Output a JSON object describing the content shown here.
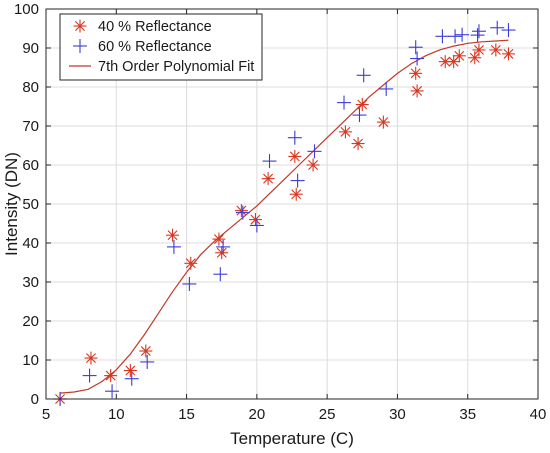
{
  "chart_data": {
    "type": "scatter",
    "title": "",
    "xlabel": "Temperature (C)",
    "ylabel": "Intensity (DN)",
    "xlim": [
      5,
      40
    ],
    "ylim": [
      0,
      100
    ],
    "xticks": [
      5,
      10,
      15,
      20,
      25,
      30,
      35,
      40
    ],
    "yticks": [
      0,
      10,
      20,
      30,
      40,
      50,
      60,
      70,
      80,
      90,
      100
    ],
    "xtick_labels": [
      "5",
      "10",
      "15",
      "20",
      "25",
      "30",
      "35",
      "40"
    ],
    "ytick_labels": [
      "0",
      "10",
      "20",
      "30",
      "40",
      "50",
      "60",
      "70",
      "80",
      "90",
      "100"
    ],
    "grid": true,
    "legend_position": "top-left",
    "colors": {
      "series_40": "#d9351f",
      "series_60": "#3b3bd6",
      "fit": "#c0392b",
      "grid": "#dcdcdc",
      "axes": "#262626"
    },
    "series": [
      {
        "name": "40 % Reflectance",
        "marker": "asterisk",
        "points": [
          [
            6.0,
            0.0
          ],
          [
            8.2,
            10.5
          ],
          [
            9.6,
            6.0
          ],
          [
            11.0,
            7.3
          ],
          [
            12.1,
            12.3
          ],
          [
            14.0,
            42.0
          ],
          [
            15.3,
            34.8
          ],
          [
            17.3,
            41.0
          ],
          [
            17.5,
            37.5
          ],
          [
            18.9,
            48.3
          ],
          [
            19.9,
            46.0
          ],
          [
            20.8,
            56.5
          ],
          [
            22.7,
            62.2
          ],
          [
            22.8,
            52.5
          ],
          [
            24.0,
            60.0
          ],
          [
            26.3,
            68.5
          ],
          [
            27.2,
            65.5
          ],
          [
            27.5,
            75.5
          ],
          [
            29.0,
            71.0
          ],
          [
            31.3,
            83.5
          ],
          [
            31.4,
            79.0
          ],
          [
            33.4,
            86.5
          ],
          [
            34.0,
            86.5
          ],
          [
            34.4,
            88.0
          ],
          [
            35.5,
            87.5
          ],
          [
            35.8,
            89.5
          ],
          [
            37.0,
            89.5
          ],
          [
            37.9,
            88.5
          ]
        ]
      },
      {
        "name": "60 % Reflectance",
        "marker": "plus",
        "points": [
          [
            6.0,
            0.0
          ],
          [
            8.1,
            6.0
          ],
          [
            9.7,
            2.0
          ],
          [
            11.1,
            5.2
          ],
          [
            12.2,
            9.5
          ],
          [
            14.1,
            39.0
          ],
          [
            15.2,
            29.5
          ],
          [
            17.4,
            32.0
          ],
          [
            17.6,
            39.0
          ],
          [
            19.0,
            47.8
          ],
          [
            20.0,
            44.5
          ],
          [
            20.9,
            61.0
          ],
          [
            22.7,
            67.0
          ],
          [
            22.9,
            56.0
          ],
          [
            24.1,
            63.5
          ],
          [
            26.2,
            76.0
          ],
          [
            27.3,
            72.8
          ],
          [
            27.6,
            83.0
          ],
          [
            29.2,
            79.5
          ],
          [
            31.4,
            87.3
          ],
          [
            31.3,
            90.2
          ],
          [
            33.2,
            93.0
          ],
          [
            34.1,
            93.0
          ],
          [
            34.6,
            93.4
          ],
          [
            35.7,
            93.3
          ],
          [
            35.8,
            94.3
          ],
          [
            37.1,
            95.2
          ],
          [
            37.9,
            94.6
          ]
        ]
      },
      {
        "name": "7th Order Polynomial Fit",
        "marker": "line",
        "points": [
          [
            6.0,
            1.5
          ],
          [
            7.0,
            1.8
          ],
          [
            8.0,
            2.5
          ],
          [
            9.0,
            4.5
          ],
          [
            10.0,
            7.5
          ],
          [
            11.0,
            11.5
          ],
          [
            12.0,
            16.5
          ],
          [
            13.0,
            22.0
          ],
          [
            14.0,
            27.5
          ],
          [
            15.0,
            32.5
          ],
          [
            16.0,
            37.0
          ],
          [
            17.0,
            40.5
          ],
          [
            18.0,
            43.5
          ],
          [
            19.0,
            46.5
          ],
          [
            20.0,
            49.5
          ],
          [
            21.0,
            53.0
          ],
          [
            22.0,
            56.5
          ],
          [
            23.0,
            60.0
          ],
          [
            24.0,
            63.5
          ],
          [
            25.0,
            67.0
          ],
          [
            26.0,
            70.5
          ],
          [
            27.0,
            74.0
          ],
          [
            28.0,
            77.5
          ],
          [
            29.0,
            80.5
          ],
          [
            30.0,
            83.5
          ],
          [
            31.0,
            86.0
          ],
          [
            32.0,
            88.0
          ],
          [
            33.0,
            89.5
          ],
          [
            34.0,
            90.5
          ],
          [
            35.0,
            91.2
          ],
          [
            36.0,
            91.6
          ],
          [
            37.0,
            91.8
          ],
          [
            37.9,
            92.0
          ]
        ]
      }
    ]
  }
}
